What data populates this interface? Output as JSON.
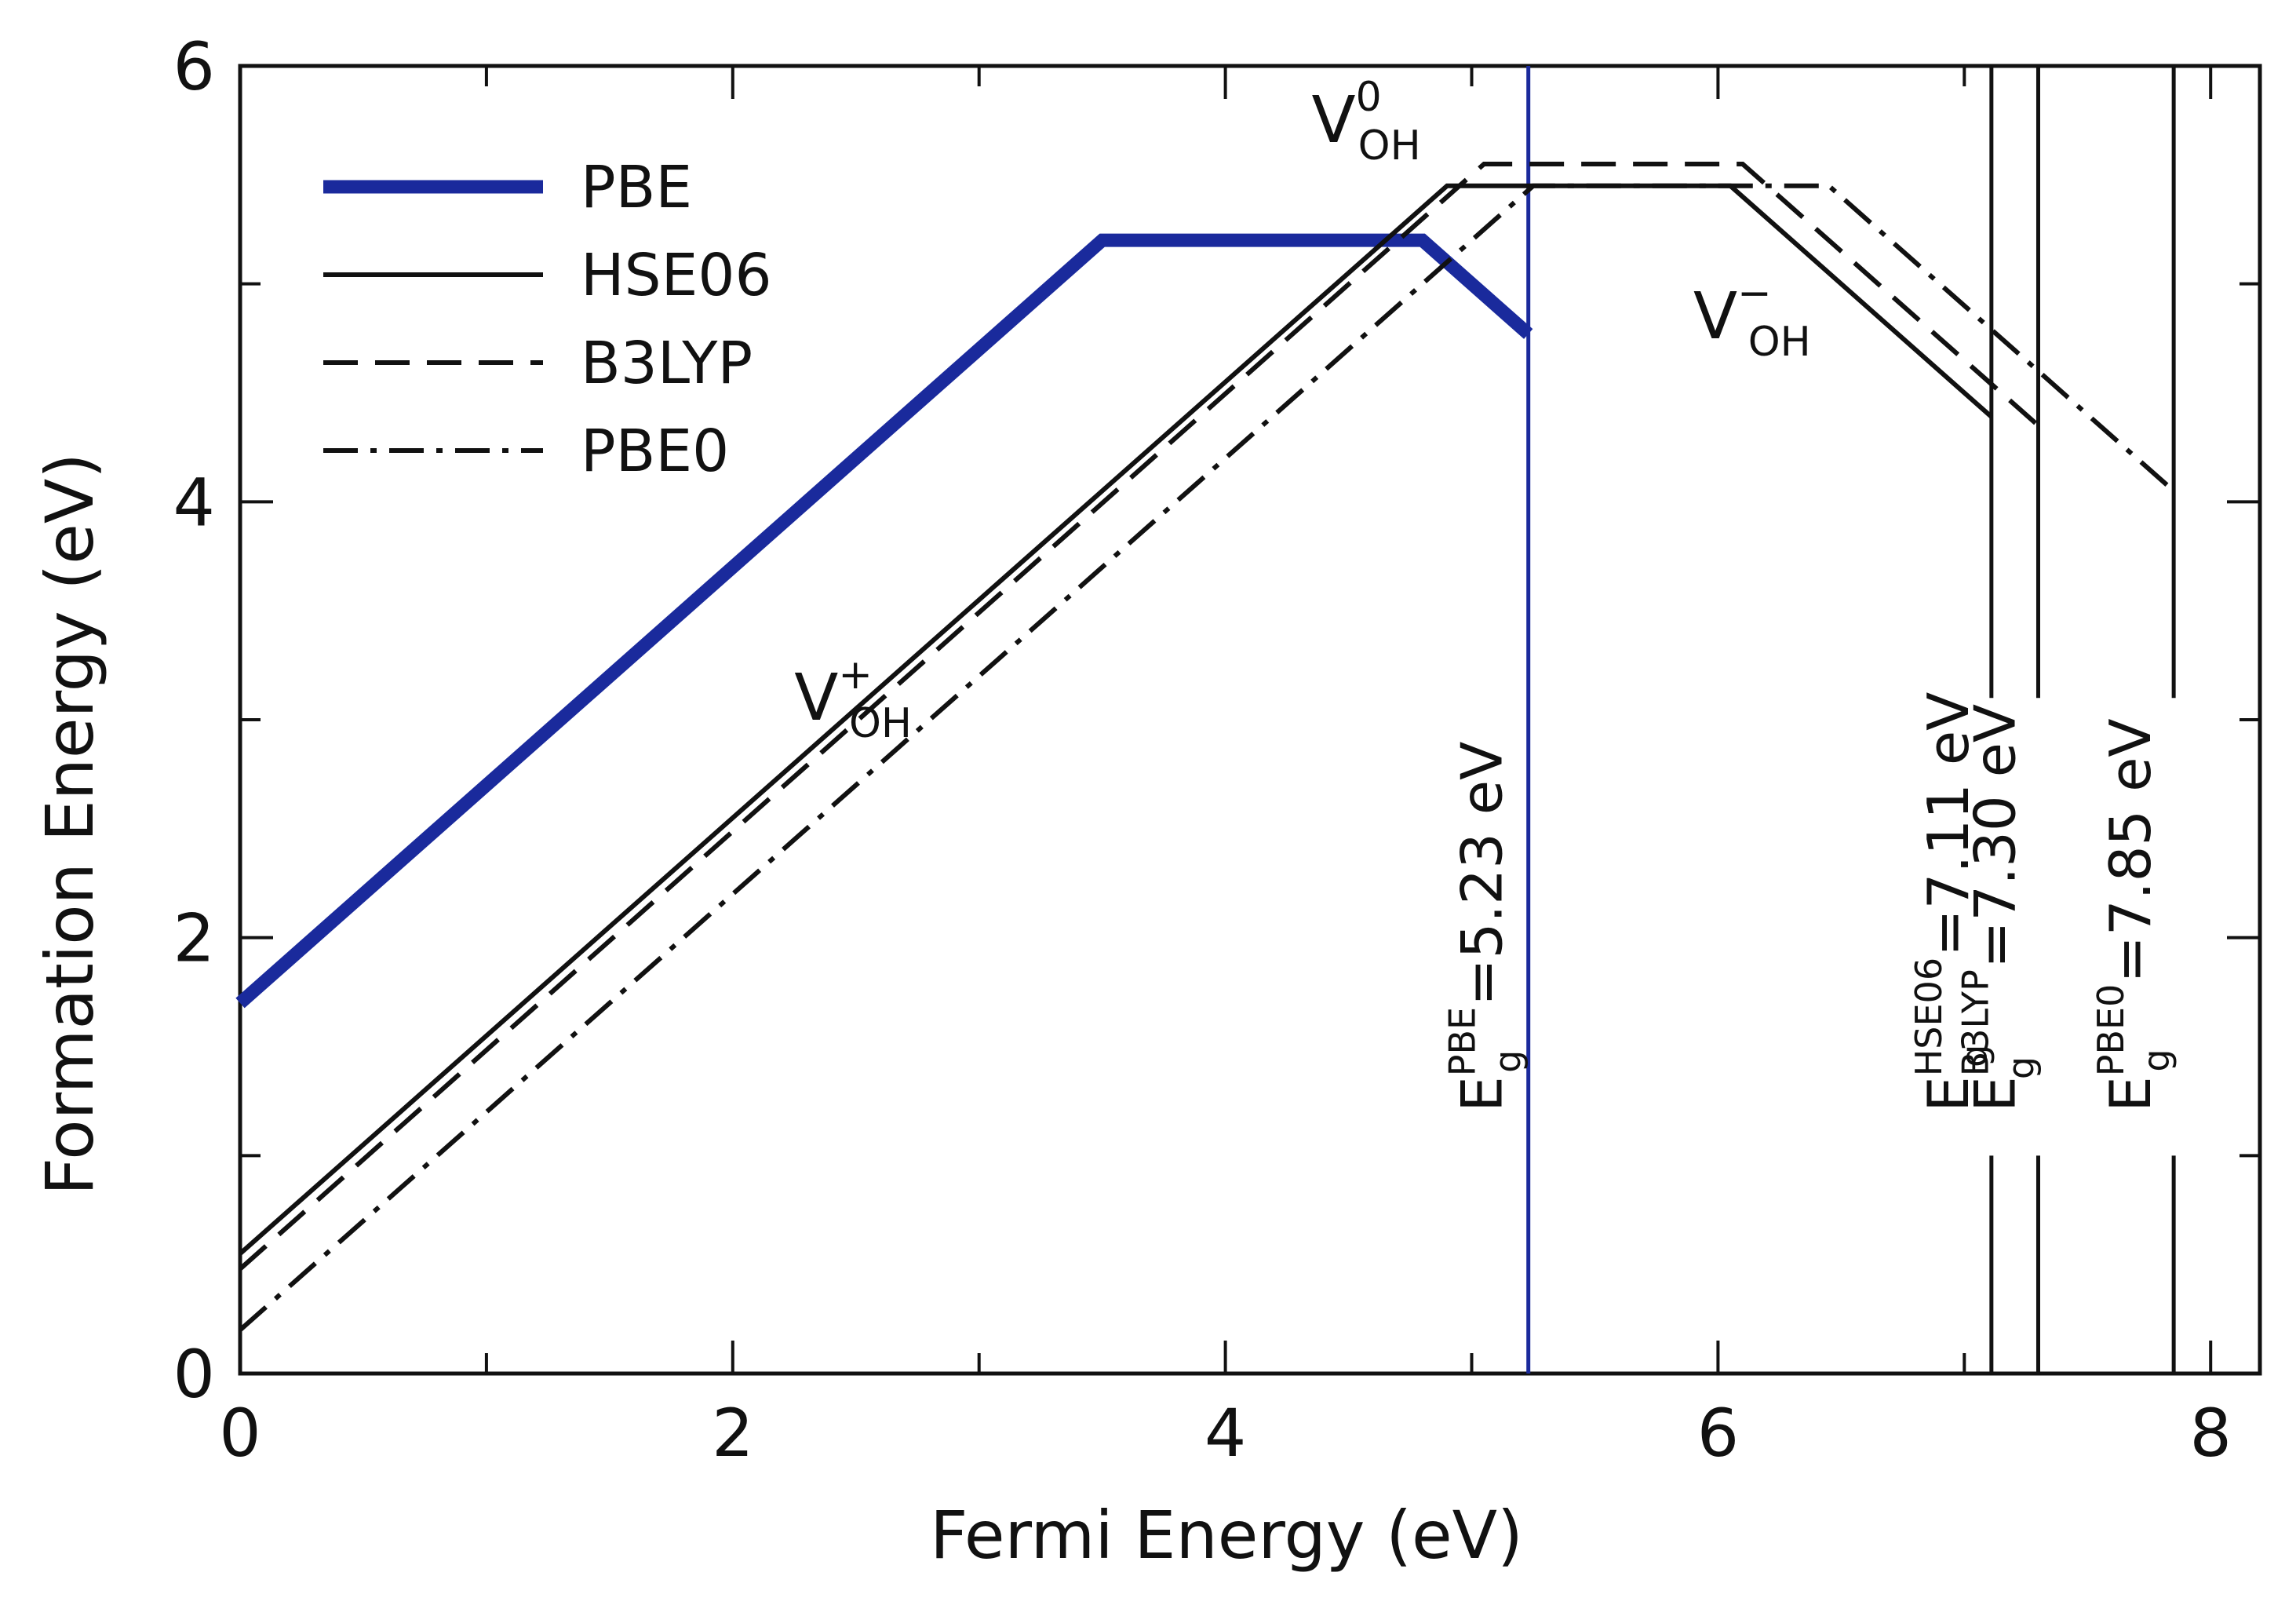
{
  "chart_data": {
    "type": "line",
    "xlabel": "Fermi Energy (eV)",
    "ylabel": "Formation Energy (eV)",
    "xlim": [
      0,
      8.2
    ],
    "ylim": [
      0,
      6
    ],
    "xticks": [
      "0",
      "2",
      "4",
      "6",
      "8"
    ],
    "yticks": [
      "0",
      "2",
      "4",
      "6"
    ],
    "legend_position": "top-left",
    "series": [
      {
        "name": "PBE",
        "style": "solid-thick",
        "color": "#1a2a9c",
        "x": [
          0,
          3.5,
          4.8,
          5.23
        ],
        "y": [
          1.7,
          5.2,
          5.2,
          4.77
        ]
      },
      {
        "name": "HSE06",
        "style": "solid",
        "color": "#111111",
        "x": [
          0,
          4.9,
          6.05,
          7.11
        ],
        "y": [
          0.55,
          5.45,
          5.45,
          4.39
        ]
      },
      {
        "name": "B3LYP",
        "style": "dashed",
        "color": "#111111",
        "x": [
          0,
          5.05,
          6.1,
          7.3
        ],
        "y": [
          0.48,
          5.55,
          5.55,
          4.35
        ]
      },
      {
        "name": "PBE0",
        "style": "dashdot",
        "color": "#111111",
        "x": [
          0,
          5.25,
          6.45,
          7.85
        ],
        "y": [
          0.2,
          5.45,
          5.45,
          4.05
        ]
      }
    ],
    "band_gaps": [
      {
        "label_main": "E",
        "label_sup": "PBE",
        "label_sub": "g",
        "label_value": "=5.23 eV",
        "x": 5.23,
        "color": "#1a2a9c"
      },
      {
        "label_main": "E",
        "label_sup": "HSE06",
        "label_sub": "g",
        "label_value": "=7.11 eV",
        "x": 7.11,
        "color": "#111111"
      },
      {
        "label_main": "E",
        "label_sup": "B3LYP",
        "label_sub": "g",
        "label_value": "=7.30 eV",
        "x": 7.3,
        "color": "#111111"
      },
      {
        "label_main": "E",
        "label_sup": "PBE0",
        "label_sub": "g",
        "label_value": "=7.85 eV",
        "x": 7.85,
        "color": "#111111"
      }
    ],
    "annotations": [
      {
        "main": "V",
        "sub": "OH",
        "sup": "+",
        "x": 2.25,
        "y": 3.0
      },
      {
        "main": "V",
        "sub": "OH",
        "sup": "0",
        "x": 4.35,
        "y": 5.65
      },
      {
        "main": "V",
        "sub": "OH",
        "sup": "−",
        "x": 5.9,
        "y": 4.75
      }
    ]
  }
}
